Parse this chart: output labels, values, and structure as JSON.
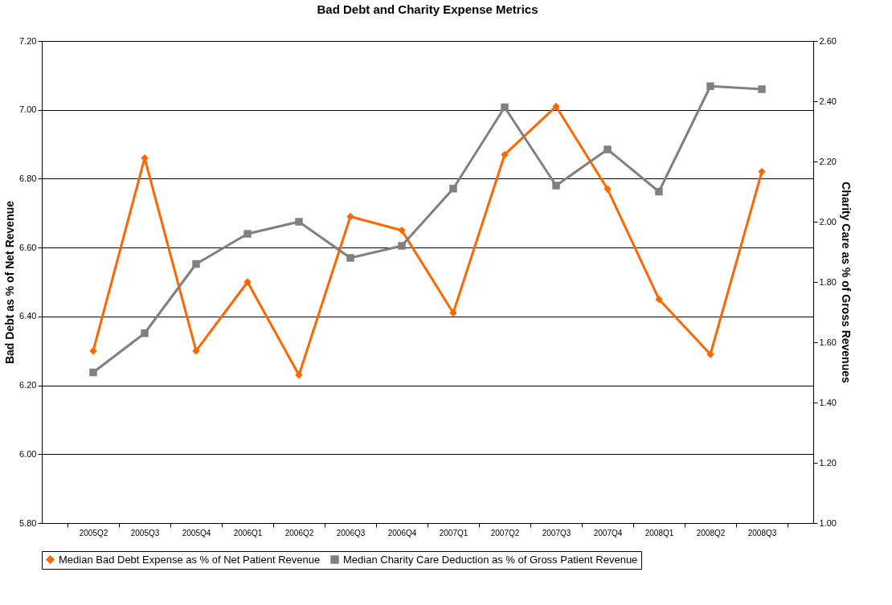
{
  "chart_data": {
    "type": "line",
    "title": "Bad Debt and Charity Expense Metrics",
    "ylabel": "Bad Debt as % of Net Revenue",
    "y2label": "Charity Care as % of Gross Revenues",
    "categories": [
      "2005Q2",
      "2005Q3",
      "2005Q4",
      "2006Q1",
      "2006Q2",
      "2006Q3",
      "2006Q4",
      "2007Q1",
      "2007Q2",
      "2007Q3",
      "2007Q4",
      "2008Q1",
      "2008Q2",
      "2008Q3"
    ],
    "series": [
      {
        "name": "Median Bad Debt Expense as % of Net Patient Revenue",
        "color": "#ff6600",
        "marker": "diamond",
        "values": [
          6.3,
          6.86,
          6.3,
          6.5,
          6.23,
          6.69,
          6.65,
          6.41,
          6.87,
          7.01,
          6.77,
          6.45,
          6.29,
          6.82
        ]
      },
      {
        "name": "Median Charity Care Deduction as % of Gross Patient Revenue",
        "color": "#808080",
        "marker": "square",
        "axis": "y2",
        "values": [
          1.5,
          1.63,
          1.86,
          1.96,
          2.0,
          1.88,
          1.92,
          2.11,
          2.38,
          2.12,
          2.24,
          2.1,
          2.45,
          2.44
        ]
      }
    ],
    "ylim": [
      5.8,
      7.2
    ],
    "yticks": [
      {
        "value": 5.8,
        "label": "5.80"
      },
      {
        "value": 6.0,
        "label": "6.00"
      },
      {
        "value": 6.2,
        "label": "6.20"
      },
      {
        "value": 6.4,
        "label": "6.40"
      },
      {
        "value": 6.6,
        "label": "6.60"
      },
      {
        "value": 6.8,
        "label": "6.80"
      },
      {
        "value": 7.0,
        "label": "7.00"
      },
      {
        "value": 7.2,
        "label": "7.20"
      }
    ],
    "y2lim": [
      1.0,
      2.6
    ],
    "y2ticks": [
      {
        "value": 1.0,
        "label": "1.00"
      },
      {
        "value": 1.2,
        "label": "1.20"
      },
      {
        "value": 1.4,
        "label": "1.40"
      },
      {
        "value": 1.6,
        "label": "1.60"
      },
      {
        "value": 1.8,
        "label": "1.80"
      },
      {
        "value": 2.0,
        "label": "2.00"
      },
      {
        "value": 2.2,
        "label": "2.20"
      },
      {
        "value": 2.4,
        "label": "2.40"
      },
      {
        "value": 2.6,
        "label": "2.60"
      }
    ],
    "grid": "y",
    "legend": "bottom",
    "line_style": "solid"
  }
}
